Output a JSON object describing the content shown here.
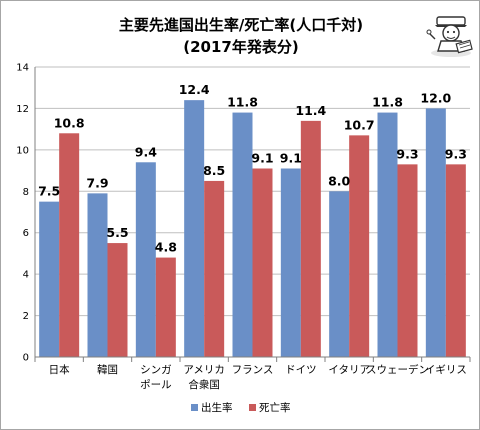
{
  "chart_data": {
    "type": "bar",
    "title": "主要先進国出生率/死亡率(人口千対)",
    "subtitle": "(2017年発表分)",
    "categories": [
      [
        "日本"
      ],
      [
        "韓国"
      ],
      [
        "シンガ",
        "ポール"
      ],
      [
        "アメリカ",
        "合衆国"
      ],
      [
        "フランス"
      ],
      [
        "ドイツ"
      ],
      [
        "イタリア"
      ],
      [
        "スウェーデン"
      ],
      [
        "イギリス"
      ]
    ],
    "series": [
      {
        "name": "出生率",
        "color": "#6a8fc7",
        "values": [
          7.5,
          7.9,
          9.4,
          12.4,
          11.8,
          9.1,
          8.0,
          11.8,
          12.0
        ],
        "labels": [
          "7.5",
          "7.9",
          "9.4",
          "12.4",
          "11.8",
          "9.1",
          "8.0",
          "11.8",
          "12.0"
        ]
      },
      {
        "name": "死亡率",
        "color": "#c95a5a",
        "values": [
          10.8,
          5.5,
          4.8,
          8.5,
          9.1,
          11.4,
          10.7,
          9.3,
          9.3
        ],
        "labels": [
          "10.8",
          "5.5",
          "4.8",
          "8.5",
          "9.1",
          "11.4",
          "10.7",
          "9.3",
          "9.3"
        ]
      }
    ],
    "ylim": [
      0,
      14
    ],
    "yticks": [
      "0",
      "2",
      "4",
      "6",
      "8",
      "10",
      "12",
      "14"
    ],
    "grid": true,
    "legend": "bottom",
    "mascot": "character-icon"
  }
}
